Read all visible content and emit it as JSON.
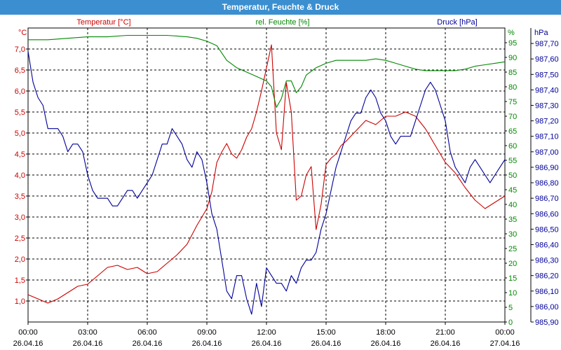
{
  "window": {
    "title": "Temperatur, Feuchte & Druck"
  },
  "chart_data": {
    "type": "line",
    "title": "Temperatur, Feuchte & Druck",
    "grid": true,
    "x_ticks": [
      {
        "time": "00:00",
        "date": "26.04.16"
      },
      {
        "time": "03:00",
        "date": "26.04.16"
      },
      {
        "time": "06:00",
        "date": "26.04.16"
      },
      {
        "time": "09:00",
        "date": "26.04.16"
      },
      {
        "time": "12:00",
        "date": "26.04.16"
      },
      {
        "time": "15:00",
        "date": "26.04.16"
      },
      {
        "time": "18:00",
        "date": "26.04.16"
      },
      {
        "time": "21:00",
        "date": "26.04.16"
      },
      {
        "time": "00:00",
        "date": "27.04.16"
      }
    ],
    "x_range_hours": [
      0,
      24
    ],
    "axes": {
      "temperature": {
        "label": "Temperatur [°C]",
        "unit": "°C",
        "position": "left",
        "color": "#cc0000",
        "range": [
          0.5,
          7.5
        ],
        "ticks": [
          "1,0",
          "1,5",
          "2,0",
          "2,5",
          "3,0",
          "3,5",
          "4,0",
          "4,5",
          "5,0",
          "5,5",
          "6,0",
          "6,5",
          "7,0"
        ]
      },
      "humidity": {
        "label": "rel. Feuchte [%]",
        "unit": "%",
        "position": "right-inner",
        "color": "#008800",
        "range": [
          0,
          100
        ],
        "ticks": [
          "0",
          "5",
          "10",
          "15",
          "20",
          "25",
          "30",
          "35",
          "40",
          "45",
          "50",
          "55",
          "60",
          "65",
          "70",
          "75",
          "80",
          "85",
          "90",
          "95"
        ]
      },
      "pressure": {
        "label": "Druck [hPa]",
        "unit": "hPa",
        "position": "right-outer",
        "color": "#000099",
        "range": [
          985.9,
          987.8
        ],
        "ticks": [
          "985,90",
          "986,00",
          "986,10",
          "986,20",
          "986,30",
          "986,40",
          "986,50",
          "986,60",
          "986,70",
          "986,80",
          "986,90",
          "987,00",
          "987,10",
          "987,20",
          "987,30",
          "987,40",
          "987,50",
          "987,60",
          "987,70"
        ]
      }
    },
    "series": [
      {
        "name": "Temperatur [°C]",
        "axis": "temperature",
        "color": "#cc0000",
        "x": [
          0,
          0.5,
          1,
          1.5,
          2,
          2.5,
          3,
          3.5,
          4,
          4.5,
          5,
          5.5,
          6,
          6.5,
          7,
          7.5,
          8,
          8.5,
          9,
          9.25,
          9.5,
          9.75,
          10,
          10.25,
          10.5,
          10.75,
          11,
          11.25,
          11.5,
          11.75,
          12,
          12.25,
          12.5,
          12.75,
          13,
          13.25,
          13.5,
          13.75,
          14,
          14.25,
          14.5,
          14.75,
          15,
          15.25,
          15.5,
          15.75,
          16,
          16.5,
          17,
          17.5,
          18,
          18.5,
          19,
          19.5,
          20,
          20.5,
          21,
          21.5,
          22,
          22.5,
          23,
          23.5,
          24
        ],
        "y": [
          1.15,
          1.05,
          0.95,
          1.05,
          1.2,
          1.35,
          1.4,
          1.6,
          1.8,
          1.85,
          1.75,
          1.8,
          1.65,
          1.7,
          1.9,
          2.1,
          2.35,
          2.8,
          3.2,
          3.6,
          4.3,
          4.55,
          4.75,
          4.5,
          4.4,
          4.6,
          4.9,
          5.1,
          5.5,
          6.0,
          6.55,
          7.1,
          5.0,
          4.6,
          6.2,
          5.5,
          3.4,
          3.5,
          4.0,
          4.2,
          2.7,
          3.3,
          4.25,
          4.4,
          4.5,
          4.7,
          4.8,
          5.05,
          5.3,
          5.2,
          5.4,
          5.4,
          5.5,
          5.4,
          5.1,
          4.7,
          4.3,
          4.05,
          3.7,
          3.4,
          3.2,
          3.35,
          3.5
        ]
      },
      {
        "name": "rel. Feuchte [%]",
        "axis": "humidity",
        "color": "#008800",
        "x": [
          0,
          1,
          2,
          3,
          4,
          5,
          6,
          7,
          8,
          8.5,
          9,
          9.5,
          10,
          10.5,
          11,
          11.5,
          12,
          12.25,
          12.5,
          12.75,
          13,
          13.25,
          13.5,
          13.75,
          14,
          14.5,
          15,
          15.5,
          16,
          16.5,
          17,
          17.5,
          18,
          18.5,
          19,
          19.5,
          20,
          20.5,
          21,
          21.5,
          22,
          22.5,
          23,
          23.5,
          24
        ],
        "y": [
          96,
          96,
          96.5,
          97,
          97,
          97.5,
          97.5,
          97.5,
          97,
          96.5,
          95.5,
          94,
          89,
          86.5,
          85,
          83.5,
          82,
          80,
          73,
          76,
          82,
          82,
          78,
          80,
          84,
          86.5,
          88,
          89,
          89,
          89,
          89,
          89.5,
          89,
          88,
          87,
          86,
          85.5,
          85.5,
          85.5,
          85.5,
          86,
          87,
          87.5,
          88,
          88.5
        ]
      },
      {
        "name": "Druck [hPa]",
        "axis": "pressure",
        "color": "#000099",
        "x": [
          0,
          0.25,
          0.5,
          0.75,
          1,
          1.25,
          1.5,
          1.75,
          2,
          2.25,
          2.5,
          2.75,
          3,
          3.25,
          3.5,
          3.75,
          4,
          4.25,
          4.5,
          4.75,
          5,
          5.25,
          5.5,
          5.75,
          6,
          6.25,
          6.5,
          6.75,
          7,
          7.25,
          7.5,
          7.75,
          8,
          8.25,
          8.5,
          8.75,
          9,
          9.25,
          9.5,
          9.75,
          10,
          10.25,
          10.5,
          10.75,
          11,
          11.25,
          11.5,
          11.75,
          12,
          12.25,
          12.5,
          12.75,
          13,
          13.25,
          13.5,
          13.75,
          14,
          14.25,
          14.5,
          14.75,
          15,
          15.25,
          15.5,
          15.75,
          16,
          16.25,
          16.5,
          16.75,
          17,
          17.25,
          17.5,
          17.75,
          18,
          18.25,
          18.5,
          18.75,
          19,
          19.25,
          19.5,
          19.75,
          20,
          20.25,
          20.5,
          20.75,
          21,
          21.25,
          21.5,
          21.75,
          22,
          22.25,
          22.5,
          22.75,
          23,
          23.25,
          23.5,
          23.75,
          24
        ],
        "y": [
          987.65,
          987.45,
          987.35,
          987.3,
          987.15,
          987.15,
          987.15,
          987.1,
          987.0,
          987.05,
          987.05,
          987.0,
          986.85,
          986.75,
          986.7,
          986.7,
          986.7,
          986.65,
          986.65,
          986.7,
          986.75,
          986.75,
          986.7,
          986.75,
          986.8,
          986.85,
          986.95,
          987.05,
          987.05,
          987.15,
          987.1,
          987.05,
          986.95,
          986.9,
          987.0,
          986.95,
          986.8,
          986.6,
          986.5,
          986.3,
          986.1,
          986.05,
          986.2,
          986.2,
          986.05,
          985.95,
          986.15,
          986.0,
          986.25,
          986.2,
          986.15,
          986.15,
          986.1,
          986.2,
          986.15,
          986.25,
          986.3,
          986.3,
          986.35,
          986.5,
          986.6,
          986.75,
          986.9,
          987.0,
          987.1,
          987.2,
          987.25,
          987.25,
          987.35,
          987.4,
          987.35,
          987.25,
          987.2,
          987.1,
          987.05,
          987.1,
          987.1,
          987.1,
          987.2,
          987.3,
          987.4,
          987.45,
          987.4,
          987.3,
          987.2,
          987.0,
          986.9,
          986.85,
          986.8,
          986.9,
          986.95,
          986.9,
          986.85,
          986.8,
          986.85,
          986.9,
          986.95
        ]
      }
    ]
  }
}
